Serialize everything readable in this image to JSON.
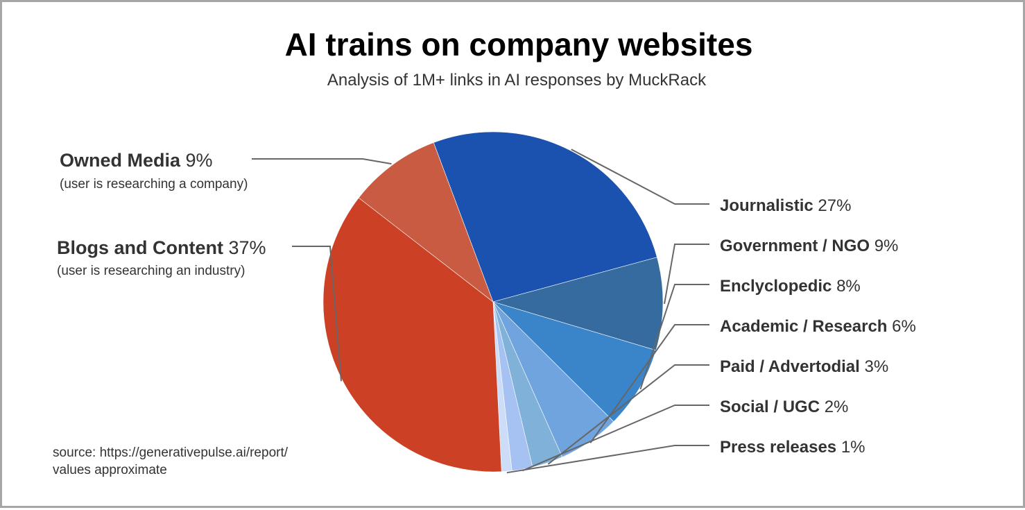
{
  "chart_data": {
    "type": "pie",
    "title": "AI trains on company websites",
    "subtitle": "Analysis of 1M+ links in AI responses by MuckRack",
    "slices": [
      {
        "label": "Journalistic",
        "value": 27,
        "value_label": "27%",
        "note": "",
        "color": "#1b52af"
      },
      {
        "label": "Government / NGO",
        "value": 9,
        "value_label": "9%",
        "note": "",
        "color": "#356b9f"
      },
      {
        "label": "Enclyclopedic",
        "value": 8,
        "value_label": "8%",
        "note": "",
        "color": "#3a84c9"
      },
      {
        "label": "Academic / Research",
        "value": 6,
        "value_label": "6%",
        "note": "",
        "color": "#70a4de"
      },
      {
        "label": "Paid / Advertodial",
        "value": 3,
        "value_label": "3%",
        "note": "",
        "color": "#80b2d9"
      },
      {
        "label": "Social / UGC",
        "value": 2,
        "value_label": "2%",
        "note": "",
        "color": "#a6c2f2"
      },
      {
        "label": "Press releases",
        "value": 1,
        "value_label": "1%",
        "note": "",
        "color": "#cddcf7"
      },
      {
        "label": "Blogs and Content",
        "value": 37,
        "value_label": "37%",
        "note": "(user is researching an industry)",
        "color": "#cc4125"
      },
      {
        "label": "Owned Media",
        "value": 9,
        "value_label": "9%",
        "note": "(user is researching a company)",
        "color": "#c85b42"
      }
    ],
    "source_lines": [
      "source: https://generativepulse.ai/report/",
      "values approximate"
    ]
  },
  "colors": {
    "border": "#a6a6a6",
    "leader_line": "#666666",
    "text": "#333333"
  }
}
